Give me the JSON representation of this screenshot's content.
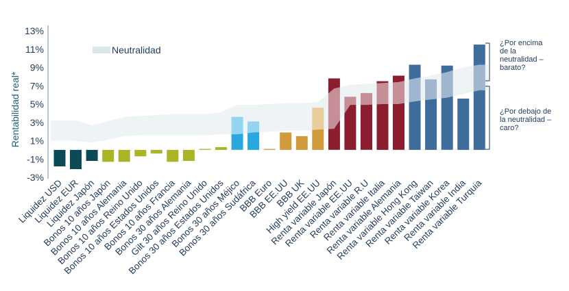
{
  "chart_data": {
    "type": "bar",
    "ylabel": "Rentabilidad real*",
    "ylim": [
      -3,
      13
    ],
    "yticks": [
      "13%",
      "11%",
      "9%",
      "7%",
      "5%",
      "3%",
      "1%",
      "-1%",
      "-3%"
    ],
    "grid": false,
    "legend": {
      "label": "Neutralidad",
      "placement": "top-left"
    },
    "categories": [
      "Liquidez USD",
      "Liquidez EUR",
      "Liquidez Japón",
      "Bonos 10 años Japón",
      "Bonos 10 años Alemania",
      "Bonos 10 años Reino Unido",
      "Bonos 10 años Estados Unidos",
      "Bonos 10 años Francia",
      "Bonos 30 años Alemania",
      "Gilt 30 años Reino Unido",
      "Bonos 30 años Estados Unidos",
      "Bonos 30 años Méjico",
      "Bonos 30 años Sudáfrica",
      "BBB Euro",
      "BBB EE.UU",
      "BBB UK",
      "High yield EE.UU",
      "Renta variable Japón",
      "Renta variable EE.UU",
      "Renta variable R.U",
      "Renta variable Italia",
      "Renta variable Alemania",
      "Renta variable Hong Kong",
      "Renta variable Taiwan",
      "Renta variable Korea",
      "Renta variable India",
      "Renta variable Turquia"
    ],
    "values": [
      -1.8,
      -2.1,
      -1.2,
      -1.3,
      -1.3,
      -0.7,
      -0.4,
      -1.3,
      -1.2,
      0.1,
      0.3,
      3.6,
      3.1,
      0.1,
      1.9,
      1.5,
      4.6,
      7.8,
      5.8,
      6.2,
      7.5,
      8.1,
      9.3,
      7.7,
      9.2,
      5.6,
      11.5
    ],
    "neutral_band": {
      "low": [
        1.0,
        1.0,
        0.8,
        1.1,
        1.5,
        1.6,
        1.6,
        1.6,
        1.6,
        1.6,
        1.7,
        1.7,
        1.9,
        2.0,
        2.1,
        2.1,
        2.2,
        2.3,
        4.9,
        4.9,
        5.0,
        5.0,
        5.3,
        5.5,
        5.7,
        6.1,
        6.5
      ],
      "high": [
        3.2,
        3.2,
        2.7,
        3.1,
        3.6,
        3.7,
        3.8,
        3.9,
        3.9,
        3.9,
        4.1,
        4.9,
        4.9,
        5.0,
        5.1,
        5.1,
        5.2,
        6.7,
        7.1,
        7.2,
        7.3,
        7.4,
        7.8,
        8.1,
        8.5,
        9.0,
        9.3
      ]
    },
    "colors": [
      "#0d4a57",
      "#0d4a57",
      "#0d4a57",
      "#a9b527",
      "#a9b527",
      "#a9b527",
      "#a9b527",
      "#a9b527",
      "#a9b527",
      "#a9b527",
      "#a9b527",
      "#29a8e0",
      "#29a8e0",
      "#d19a3a",
      "#d19a3a",
      "#d19a3a",
      "#d19a3a",
      "#8c1d2f",
      "#8c1d2f",
      "#8c1d2f",
      "#8c1d2f",
      "#8c1d2f",
      "#3e6d9c",
      "#3e6d9c",
      "#3e6d9c",
      "#3e6d9c",
      "#3e6d9c"
    ],
    "annotations": {
      "above": [
        "¿Por encima",
        "de la",
        "neutralidad –",
        "barato?"
      ],
      "below": [
        "¿Por debajo de",
        "la neutralidad –",
        "caro?"
      ]
    }
  }
}
